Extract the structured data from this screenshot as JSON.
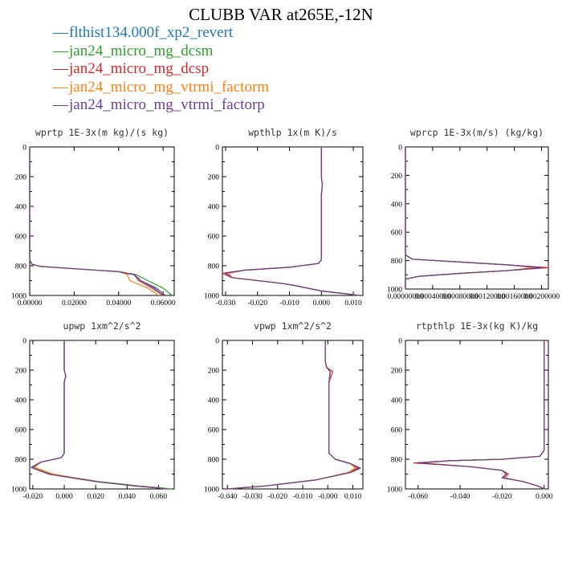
{
  "title": "CLUBB VAR at265E,-12N",
  "legend": [
    {
      "name": "flthist134.000f_xp2_revert",
      "color": "#1f77b4"
    },
    {
      "name": "jan24_micro_mg_dcsm",
      "color": "#2ca02c"
    },
    {
      "name": "jan24_micro_mg_dcsp",
      "color": "#d62728"
    },
    {
      "name": "jan24_micro_mg_vtrmi_factorm",
      "color": "#ff7f0e"
    },
    {
      "name": "jan24_micro_mg_vtrmi_factorp",
      "color": "#6a3d9a"
    }
  ],
  "chart_data": [
    {
      "type": "line",
      "title": "wprtp  1E-3x(m kg)/(s kg)",
      "xlim": [
        0.0,
        0.065
      ],
      "ylim": [
        1000,
        0
      ],
      "xticks": [
        "0.00000",
        "0.02000",
        "0.04000",
        "0.06000"
      ],
      "xtick_values": [
        0.0,
        0.02,
        0.04,
        0.06
      ],
      "yticks": [
        "0",
        "200",
        "400",
        "600",
        "800",
        "1000"
      ],
      "series": [
        {
          "x": [
            0,
            0,
            0.001,
            0.005,
            0.02,
            0.04,
            0.047,
            0.05,
            0.056,
            0.06
          ],
          "y": [
            0,
            760,
            790,
            805,
            820,
            840,
            860,
            900,
            950,
            1000
          ]
        },
        {
          "x": [
            0,
            0,
            0.001,
            0.005,
            0.02,
            0.04,
            0.048,
            0.053,
            0.06,
            0.064
          ],
          "y": [
            0,
            760,
            790,
            805,
            820,
            840,
            860,
            900,
            950,
            1000
          ]
        },
        {
          "x": [
            0,
            0,
            0.001,
            0.005,
            0.02,
            0.04,
            0.047,
            0.049,
            0.055,
            0.06
          ],
          "y": [
            0,
            760,
            790,
            805,
            820,
            840,
            860,
            900,
            950,
            1000
          ]
        },
        {
          "x": [
            0,
            0,
            0.001,
            0.005,
            0.02,
            0.04,
            0.044,
            0.045,
            0.053,
            0.058
          ],
          "y": [
            0,
            760,
            790,
            805,
            820,
            840,
            860,
            900,
            950,
            1000
          ]
        },
        {
          "x": [
            0,
            0,
            0.001,
            0.005,
            0.02,
            0.04,
            0.047,
            0.05,
            0.057,
            0.061
          ],
          "y": [
            0,
            760,
            790,
            805,
            820,
            840,
            860,
            900,
            950,
            1000
          ]
        }
      ]
    },
    {
      "type": "line",
      "title": "wpthlp  1x(m K)/s",
      "xlim": [
        -0.031,
        0.013
      ],
      "ylim": [
        1000,
        0
      ],
      "xticks": [
        "-0.030",
        "-0.020",
        "-0.010",
        "0.000",
        "0.010"
      ],
      "xtick_values": [
        -0.03,
        -0.02,
        -0.01,
        0.0,
        0.01
      ],
      "yticks": [
        "0",
        "200",
        "400",
        "600",
        "800",
        "1000"
      ],
      "series": [
        {
          "x": [
            0,
            0,
            0.0003,
            0,
            0,
            -0.001,
            -0.01,
            -0.024,
            -0.03,
            -0.028,
            -0.012,
            -0.009,
            0,
            0.012
          ],
          "y": [
            0,
            200,
            260,
            320,
            760,
            785,
            810,
            830,
            850,
            880,
            920,
            930,
            970,
            1000
          ]
        },
        {
          "x": [
            0,
            0,
            0.0003,
            0,
            0,
            -0.001,
            -0.01,
            -0.024,
            -0.029,
            -0.028,
            -0.012,
            -0.009,
            0,
            0.012
          ],
          "y": [
            0,
            200,
            260,
            320,
            760,
            785,
            810,
            830,
            850,
            880,
            920,
            930,
            970,
            1000
          ]
        },
        {
          "x": [
            0,
            0,
            0.0003,
            0,
            0,
            -0.001,
            -0.01,
            -0.024,
            -0.031,
            -0.028,
            -0.012,
            -0.009,
            0,
            0.012
          ],
          "y": [
            0,
            200,
            260,
            320,
            760,
            785,
            810,
            830,
            850,
            880,
            920,
            930,
            970,
            1000
          ]
        },
        {
          "x": [
            0,
            0,
            0.0003,
            0,
            0,
            -0.001,
            -0.01,
            -0.024,
            -0.029,
            -0.028,
            -0.012,
            -0.009,
            0,
            0.012
          ],
          "y": [
            0,
            200,
            260,
            320,
            760,
            785,
            810,
            830,
            850,
            880,
            920,
            930,
            970,
            1000
          ]
        },
        {
          "x": [
            0,
            0,
            0.0003,
            0,
            0,
            -0.001,
            -0.01,
            -0.024,
            -0.03,
            -0.028,
            -0.012,
            -0.009,
            0,
            0.012
          ],
          "y": [
            0,
            200,
            260,
            320,
            760,
            785,
            810,
            830,
            850,
            880,
            920,
            930,
            970,
            1000
          ]
        }
      ]
    },
    {
      "type": "line",
      "title": "wprcp  1E-3x(m/s) (kg/kg)",
      "xlim": [
        0.0,
        0.0021
      ],
      "ylim": [
        1000,
        0
      ],
      "xticks": [
        "0.00000000",
        "0.00040000",
        "0.00080000",
        "0.00120000",
        "0.00160000",
        "0.00200000"
      ],
      "xtick_values": [
        0.0,
        0.0004,
        0.0008,
        0.0012,
        0.0016,
        0.002
      ],
      "yticks": [
        "0",
        "200",
        "400",
        "600",
        "800",
        "1000"
      ],
      "series": [
        {
          "x": [
            0,
            0,
            0.0001,
            0.0008,
            0.0015,
            0.002,
            0.0015,
            0.0008,
            0.0002,
            0,
            0
          ],
          "y": [
            0,
            760,
            790,
            810,
            830,
            850,
            870,
            890,
            910,
            930,
            1000
          ]
        },
        {
          "x": [
            0,
            0,
            0.0001,
            0.0008,
            0.0015,
            0.0019,
            0.0015,
            0.0008,
            0.0002,
            0,
            0
          ],
          "y": [
            0,
            760,
            790,
            810,
            830,
            850,
            870,
            890,
            910,
            930,
            1000
          ]
        },
        {
          "x": [
            0,
            0,
            0.0001,
            0.0008,
            0.0015,
            0.0021,
            0.0015,
            0.0008,
            0.0002,
            0,
            0
          ],
          "y": [
            0,
            760,
            790,
            810,
            830,
            850,
            870,
            890,
            910,
            930,
            1000
          ]
        },
        {
          "x": [
            0,
            0,
            0.0001,
            0.0008,
            0.0015,
            0.0019,
            0.0015,
            0.0008,
            0.0002,
            0,
            0
          ],
          "y": [
            0,
            760,
            790,
            810,
            830,
            850,
            870,
            890,
            910,
            930,
            1000
          ]
        },
        {
          "x": [
            0,
            0,
            0.0001,
            0.0008,
            0.0015,
            0.002,
            0.0015,
            0.0008,
            0.0002,
            0,
            0
          ],
          "y": [
            0,
            760,
            790,
            810,
            830,
            850,
            870,
            890,
            910,
            930,
            1000
          ]
        }
      ]
    },
    {
      "type": "line",
      "title": "upwp  1xm^2/s^2",
      "xlim": [
        -0.022,
        0.07
      ],
      "ylim": [
        1000,
        0
      ],
      "xticks": [
        "-0.020",
        "0.000",
        "0.020",
        "0.040",
        "0.060"
      ],
      "xtick_values": [
        -0.02,
        0.0,
        0.02,
        0.04,
        0.06
      ],
      "yticks": [
        "0",
        "200",
        "400",
        "600",
        "800",
        "1000"
      ],
      "series": [
        {
          "x": [
            0,
            0,
            0.001,
            0,
            0,
            -0.002,
            -0.015,
            -0.021,
            -0.01,
            0.02,
            0.045,
            0.062,
            0.065
          ],
          "y": [
            0,
            200,
            240,
            280,
            760,
            790,
            820,
            855,
            900,
            950,
            980,
            995,
            1000
          ]
        },
        {
          "x": [
            0,
            0,
            0.001,
            0,
            0,
            -0.002,
            -0.015,
            -0.02,
            -0.008,
            0.022,
            0.048,
            0.064,
            0.068
          ],
          "y": [
            0,
            200,
            240,
            280,
            760,
            790,
            820,
            855,
            900,
            950,
            980,
            995,
            1000
          ]
        },
        {
          "x": [
            0,
            0,
            0.001,
            0,
            0,
            -0.002,
            -0.015,
            -0.021,
            -0.01,
            0.02,
            0.045,
            0.062,
            0.065
          ],
          "y": [
            0,
            200,
            240,
            280,
            760,
            790,
            820,
            855,
            900,
            950,
            980,
            995,
            1000
          ]
        },
        {
          "x": [
            0,
            0,
            0.001,
            0,
            0,
            -0.002,
            -0.015,
            -0.019,
            -0.007,
            0.02,
            0.045,
            0.062,
            0.065
          ],
          "y": [
            0,
            200,
            240,
            280,
            760,
            790,
            820,
            855,
            900,
            950,
            980,
            995,
            1000
          ]
        },
        {
          "x": [
            0,
            0,
            0.001,
            0,
            0,
            -0.002,
            -0.015,
            -0.021,
            -0.01,
            0.02,
            0.045,
            0.062,
            0.065
          ],
          "y": [
            0,
            200,
            240,
            280,
            760,
            790,
            820,
            855,
            900,
            950,
            980,
            995,
            1000
          ]
        }
      ]
    },
    {
      "type": "line",
      "title": "vpwp  1xm^2/s^2",
      "xlim": [
        -0.042,
        0.014
      ],
      "ylim": [
        1000,
        0
      ],
      "xticks": [
        "-0.040",
        "-0.030",
        "-0.020",
        "-0.010",
        "-0.000",
        "0.010"
      ],
      "xtick_values": [
        -0.04,
        -0.03,
        -0.02,
        -0.01,
        0.0,
        0.01
      ],
      "yticks": [
        "0",
        "200",
        "400",
        "600",
        "800",
        "1000"
      ],
      "series": [
        {
          "x": [
            -0.001,
            -0.001,
            -0.0005,
            0.001,
            0.0005,
            0.0005,
            0.003,
            0.009,
            0.013,
            0.009,
            -0.005,
            -0.025,
            -0.04
          ],
          "y": [
            0,
            140,
            180,
            210,
            280,
            760,
            800,
            830,
            860,
            890,
            940,
            980,
            1000
          ]
        },
        {
          "x": [
            -0.001,
            -0.001,
            -0.0005,
            0.001,
            0.0005,
            0.0005,
            0.003,
            0.009,
            0.013,
            0.009,
            -0.005,
            -0.025,
            -0.04
          ],
          "y": [
            0,
            140,
            180,
            210,
            280,
            760,
            800,
            830,
            860,
            890,
            940,
            980,
            1000
          ]
        },
        {
          "x": [
            -0.001,
            -0.001,
            -0.0005,
            0.002,
            0.0005,
            0.0005,
            0.003,
            0.009,
            0.012,
            0.008,
            -0.005,
            -0.025,
            -0.04
          ],
          "y": [
            0,
            140,
            180,
            210,
            280,
            760,
            800,
            830,
            860,
            890,
            940,
            980,
            1000
          ]
        },
        {
          "x": [
            -0.001,
            -0.001,
            -0.0005,
            0.001,
            0.0005,
            0.0005,
            0.003,
            0.009,
            0.011,
            0.008,
            -0.005,
            -0.025,
            -0.04
          ],
          "y": [
            0,
            140,
            180,
            210,
            280,
            760,
            800,
            830,
            860,
            890,
            940,
            980,
            1000
          ]
        },
        {
          "x": [
            -0.001,
            -0.001,
            -0.0005,
            0.001,
            0.0005,
            0.0005,
            0.003,
            0.009,
            0.013,
            0.009,
            -0.005,
            -0.025,
            -0.04
          ],
          "y": [
            0,
            140,
            180,
            210,
            280,
            760,
            800,
            830,
            860,
            890,
            940,
            980,
            1000
          ]
        }
      ]
    },
    {
      "type": "line",
      "title": "rtpthlp  1E-3x(kg K)/kg",
      "xlim": [
        -0.066,
        0.002
      ],
      "ylim": [
        1000,
        0
      ],
      "xticks": [
        "-0.060",
        "-0.040",
        "-0.020",
        "0.000"
      ],
      "xtick_values": [
        -0.06,
        -0.04,
        -0.02,
        0.0
      ],
      "yticks": [
        "0",
        "200",
        "400",
        "600",
        "800",
        "1000"
      ],
      "series": [
        {
          "x": [
            0,
            0,
            -0.002,
            -0.02,
            -0.045,
            -0.06,
            -0.035,
            -0.02,
            -0.018,
            -0.02,
            -0.01,
            -0.003,
            0
          ],
          "y": [
            0,
            740,
            780,
            800,
            810,
            825,
            850,
            875,
            900,
            925,
            950,
            980,
            1000
          ]
        },
        {
          "x": [
            0,
            0,
            -0.002,
            -0.02,
            -0.045,
            -0.06,
            -0.035,
            -0.02,
            -0.018,
            -0.02,
            -0.01,
            -0.003,
            0
          ],
          "y": [
            0,
            740,
            780,
            800,
            810,
            825,
            850,
            875,
            900,
            925,
            950,
            980,
            1000
          ]
        },
        {
          "x": [
            0,
            0,
            -0.002,
            -0.02,
            -0.045,
            -0.062,
            -0.035,
            -0.02,
            -0.017,
            -0.019,
            -0.01,
            -0.003,
            0
          ],
          "y": [
            0,
            740,
            780,
            800,
            810,
            825,
            850,
            875,
            900,
            925,
            950,
            980,
            1000
          ]
        },
        {
          "x": [
            0,
            0,
            -0.002,
            -0.02,
            -0.045,
            -0.058,
            -0.035,
            -0.02,
            -0.018,
            -0.02,
            -0.01,
            -0.003,
            0
          ],
          "y": [
            0,
            740,
            780,
            800,
            810,
            825,
            850,
            875,
            900,
            925,
            950,
            980,
            1000
          ]
        },
        {
          "x": [
            0,
            0,
            -0.002,
            -0.02,
            -0.045,
            -0.06,
            -0.035,
            -0.02,
            -0.018,
            -0.02,
            -0.01,
            -0.003,
            0
          ],
          "y": [
            0,
            740,
            780,
            800,
            810,
            825,
            850,
            875,
            900,
            925,
            950,
            980,
            1000
          ]
        }
      ]
    }
  ]
}
